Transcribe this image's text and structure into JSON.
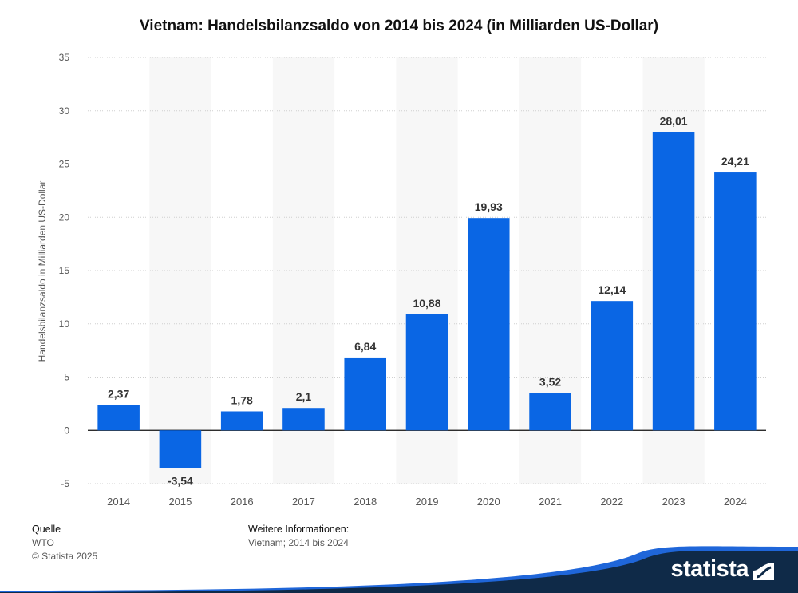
{
  "header": {
    "title": "Vietnam: Handelsbilanzsaldo von 2014 bis 2024 (in Milliarden US-Dollar)"
  },
  "chart_data": {
    "type": "bar",
    "title": "Vietnam: Handelsbilanzsaldo von 2014 bis 2024 (in Milliarden US-Dollar)",
    "xlabel": "",
    "ylabel": "Handelsbilanzsaldo in Milliarden US-Dollar",
    "categories": [
      "2014",
      "2015",
      "2016",
      "2017",
      "2018",
      "2019",
      "2020",
      "2021",
      "2022",
      "2023",
      "2024"
    ],
    "values": [
      2.37,
      -3.54,
      1.78,
      2.1,
      6.84,
      10.88,
      19.93,
      3.52,
      12.14,
      28.01,
      24.21
    ],
    "value_labels": [
      "2,37",
      "-3,54",
      "1,78",
      "2,1",
      "6,84",
      "10,88",
      "19,93",
      "3,52",
      "12,14",
      "28,01",
      "24,21"
    ],
    "ylim": [
      -5,
      35
    ],
    "yticks": [
      -5,
      0,
      5,
      10,
      15,
      20,
      25,
      30,
      35
    ],
    "grid": true,
    "legend": "none",
    "bar_color": "#0a66e4",
    "band_color": "#f7f7f7"
  },
  "footer": {
    "source_heading": "Quelle",
    "source": "WTO",
    "copyright": "© Statista 2025",
    "info_heading": "Weitere Informationen:",
    "info": "Vietnam; 2014 bis 2024"
  },
  "brand": {
    "name": "statista",
    "color": "#0f2a48",
    "accent": "#1f66d9"
  }
}
